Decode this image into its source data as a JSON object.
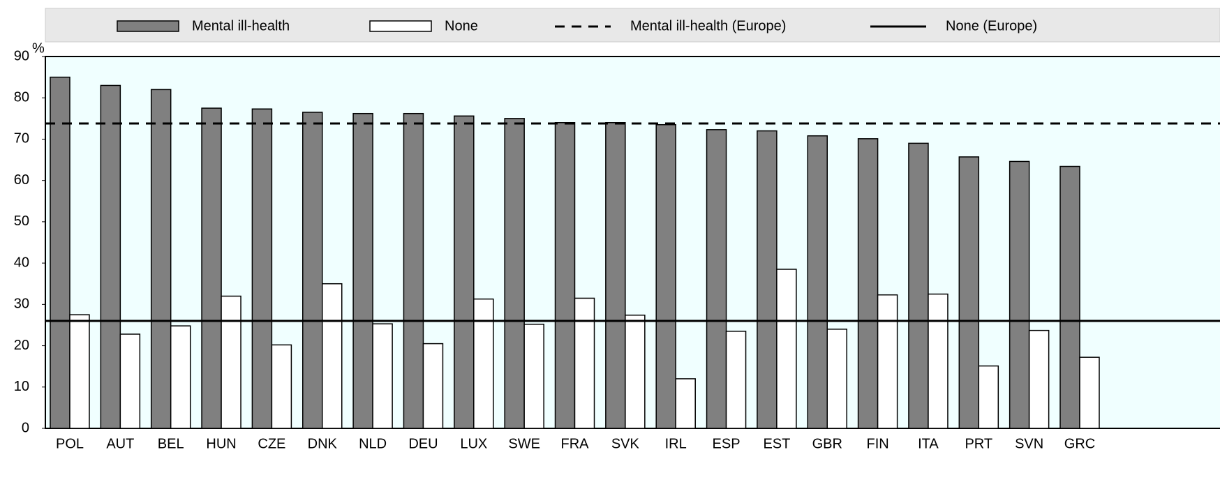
{
  "chart_data": {
    "type": "bar",
    "y_label": "%",
    "categories": [
      "POL",
      "AUT",
      "BEL",
      "HUN",
      "CZE",
      "DNK",
      "NLD",
      "DEU",
      "LUX",
      "SWE",
      "FRA",
      "SVK",
      "IRL",
      "ESP",
      "EST",
      "GBR",
      "FIN",
      "ITA",
      "PRT",
      "SVN",
      "GRC"
    ],
    "series": [
      {
        "name": "Mental ill-health",
        "color": "#808080",
        "values": [
          85,
          83,
          82,
          77.5,
          77.3,
          76.5,
          76.2,
          76.2,
          75.6,
          75,
          74,
          74,
          73.5,
          72.3,
          72,
          70.8,
          70.1,
          69,
          65.7,
          64.6,
          63.4
        ]
      },
      {
        "name": "None",
        "color": "#ffffff",
        "values": [
          27.5,
          22.8,
          24.8,
          32,
          20.2,
          35,
          25.3,
          20.5,
          31.3,
          25.2,
          31.5,
          27.4,
          12,
          23.5,
          38.5,
          24,
          32.3,
          32.5,
          15.1,
          23.7,
          17.2
        ]
      }
    ],
    "reference_lines": [
      {
        "name": "Mental ill-health (Europe)",
        "value": 73.8,
        "dashed": true,
        "color": "#000000"
      },
      {
        "name": "None (Europe)",
        "value": 26,
        "dashed": false,
        "color": "#000000"
      }
    ],
    "ylim": [
      0,
      90
    ],
    "yticks": [
      0,
      10,
      20,
      30,
      40,
      50,
      60,
      70,
      80,
      90
    ],
    "plot_background": "#f0ffff",
    "legend_background": "#e8e8e8"
  }
}
